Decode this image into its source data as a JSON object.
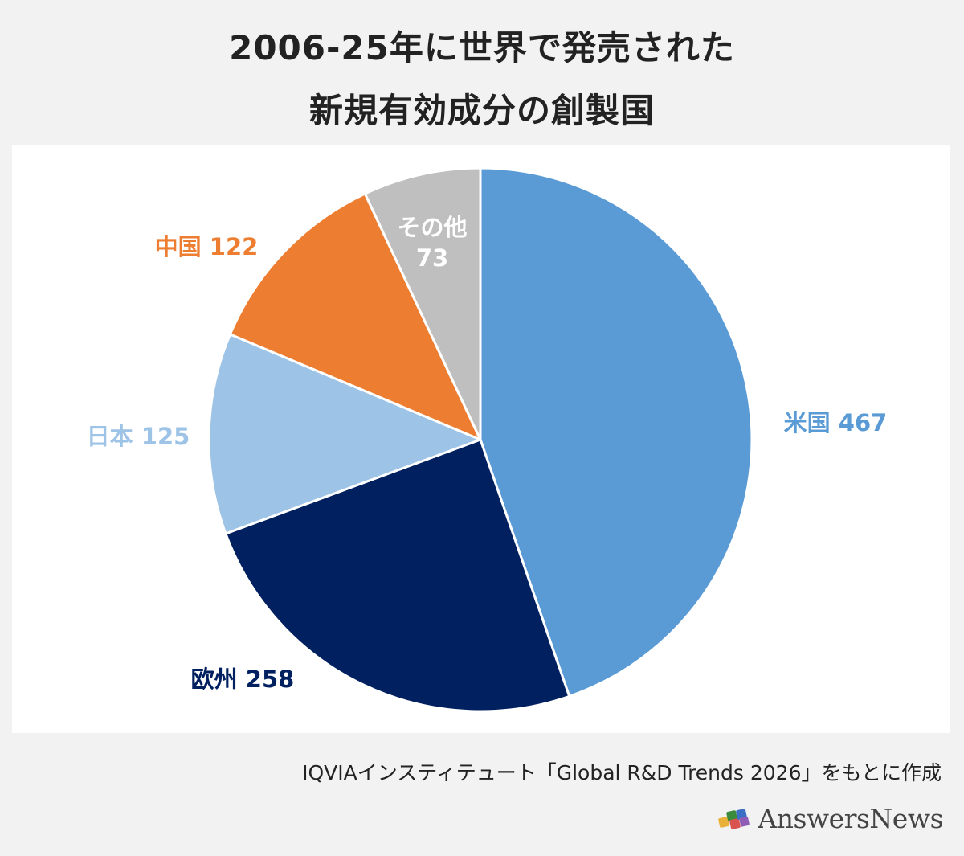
{
  "title": {
    "line1": "2006-25年に世界で発売された",
    "line2": "新規有効成分の創製国"
  },
  "source_note": "IQVIAインスティテュート「Global R&D Trends 2026」をもとに作成",
  "logo": {
    "text": "AnswersNews",
    "icon": "puzzle-pieces-icon"
  },
  "chart_data": {
    "type": "pie",
    "start_angle": "12 o'clock",
    "direction": "clockwise",
    "slices": [
      {
        "label": "米国",
        "value": 467,
        "color": "#5b9bd5",
        "label_color": "#5b9bd5"
      },
      {
        "label": "欧州",
        "value": 258,
        "color": "#002060",
        "label_color": "#002060"
      },
      {
        "label": "日本",
        "value": 125,
        "color": "#9dc3e6",
        "label_color": "#9dc3e6"
      },
      {
        "label": "中国",
        "value": 122,
        "color": "#ed7d31",
        "label_color": "#ed7d31"
      },
      {
        "label": "その他",
        "value": 73,
        "color": "#bfbfbf",
        "label_color": "#ffffff"
      }
    ]
  }
}
